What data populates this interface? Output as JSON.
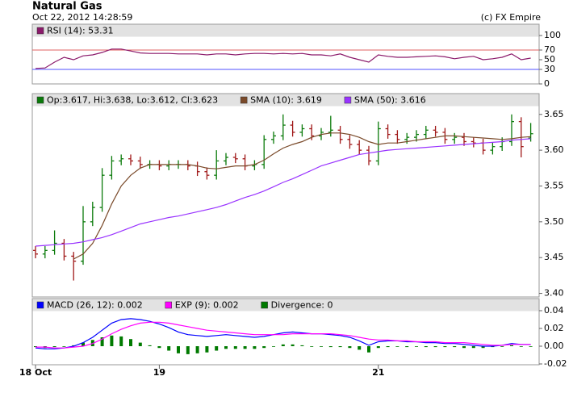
{
  "header": {
    "title": "Natural Gas",
    "timestamp": "Oct 22, 2012 14:28:59",
    "credit": "(c) FX Empire"
  },
  "chart_data": [
    {
      "type": "line",
      "ylim": [
        0,
        100
      ],
      "yticks": [
        0,
        30,
        50,
        70,
        100
      ],
      "reference_lines": [
        {
          "value": 70,
          "color": "#e06060"
        },
        {
          "value": 30,
          "color": "#5050ff"
        }
      ],
      "series": [
        {
          "name": "RSI (14): 53.31",
          "color": "#8b1a6b",
          "values": [
            32,
            33,
            45,
            55,
            50,
            58,
            60,
            65,
            72,
            72,
            68,
            64,
            63,
            63,
            63,
            62,
            62,
            62,
            60,
            62,
            62,
            60,
            62,
            63,
            63,
            62,
            63,
            62,
            63,
            60,
            60,
            58,
            62,
            55,
            50,
            45,
            60,
            57,
            55,
            55,
            56,
            57,
            58,
            56,
            52,
            55,
            57,
            50,
            52,
            55,
            62,
            50,
            53.31
          ]
        }
      ]
    },
    {
      "type": "ohlc",
      "ylim": [
        3.395,
        3.661
      ],
      "yticks": [
        {
          "value": 3.4,
          "label": "3.40"
        },
        3.45,
        {
          "value": 3.5,
          "label": "3.50"
        },
        3.55,
        {
          "value": 3.6,
          "label": "3.60"
        },
        3.65
      ],
      "series": [
        {
          "name": "Op:3.617, Hi:3.638, Lo:3.612, Cl:3.623",
          "color": "#0a7a0a",
          "up_color": "#0a7a0a",
          "down_color": "#a01818",
          "open": [
            3.46,
            3.455,
            3.46,
            3.47,
            3.452,
            3.445,
            3.5,
            3.52,
            3.565,
            3.585,
            3.588,
            3.585,
            3.58,
            3.58,
            3.578,
            3.58,
            3.58,
            3.578,
            3.57,
            3.565,
            3.585,
            3.59,
            3.588,
            3.578,
            3.58,
            3.615,
            3.62,
            3.635,
            3.625,
            3.63,
            3.62,
            3.625,
            3.628,
            3.615,
            3.608,
            3.6,
            3.585,
            3.63,
            3.622,
            3.615,
            3.618,
            3.622,
            3.628,
            3.625,
            3.615,
            3.618,
            3.612,
            3.61,
            3.6,
            3.605,
            3.612,
            3.64,
            3.617
          ],
          "high": [
            3.466,
            3.466,
            3.488,
            3.476,
            3.458,
            3.522,
            3.528,
            3.575,
            3.592,
            3.594,
            3.594,
            3.591,
            3.586,
            3.586,
            3.586,
            3.586,
            3.586,
            3.584,
            3.576,
            3.6,
            3.596,
            3.596,
            3.594,
            3.586,
            3.621,
            3.626,
            3.65,
            3.641,
            3.636,
            3.636,
            3.631,
            3.648,
            3.634,
            3.621,
            3.614,
            3.606,
            3.64,
            3.636,
            3.628,
            3.624,
            3.628,
            3.634,
            3.634,
            3.631,
            3.624,
            3.624,
            3.618,
            3.616,
            3.611,
            3.618,
            3.65,
            3.646,
            3.638
          ],
          "low": [
            3.449,
            3.449,
            3.454,
            3.446,
            3.418,
            3.44,
            3.494,
            3.514,
            3.559,
            3.579,
            3.579,
            3.574,
            3.574,
            3.572,
            3.572,
            3.574,
            3.572,
            3.564,
            3.559,
            3.559,
            3.579,
            3.582,
            3.572,
            3.572,
            3.574,
            3.609,
            3.614,
            3.619,
            3.619,
            3.614,
            3.614,
            3.619,
            3.609,
            3.602,
            3.594,
            3.579,
            3.579,
            3.616,
            3.609,
            3.609,
            3.612,
            3.616,
            3.619,
            3.609,
            3.609,
            3.606,
            3.604,
            3.594,
            3.594,
            3.599,
            3.606,
            3.59,
            3.612
          ],
          "close": [
            3.455,
            3.46,
            3.47,
            3.452,
            3.445,
            3.5,
            3.52,
            3.565,
            3.585,
            3.588,
            3.585,
            3.58,
            3.58,
            3.578,
            3.58,
            3.58,
            3.578,
            3.57,
            3.565,
            3.585,
            3.59,
            3.588,
            3.578,
            3.58,
            3.615,
            3.62,
            3.635,
            3.625,
            3.63,
            3.62,
            3.625,
            3.628,
            3.615,
            3.608,
            3.6,
            3.585,
            3.63,
            3.622,
            3.615,
            3.618,
            3.622,
            3.628,
            3.625,
            3.615,
            3.618,
            3.612,
            3.61,
            3.6,
            3.605,
            3.612,
            3.64,
            3.605,
            3.623
          ]
        },
        {
          "name": "SMA (10): 3.619",
          "color": "#7a4a2a",
          "values": [
            null,
            null,
            null,
            null,
            3.448,
            3.455,
            3.47,
            3.495,
            3.525,
            3.55,
            3.565,
            3.575,
            3.58,
            3.58,
            3.58,
            3.58,
            3.58,
            3.578,
            3.575,
            3.574,
            3.576,
            3.578,
            3.578,
            3.58,
            3.586,
            3.595,
            3.603,
            3.608,
            3.612,
            3.618,
            3.622,
            3.624,
            3.624,
            3.622,
            3.618,
            3.612,
            3.608,
            3.61,
            3.61,
            3.612,
            3.614,
            3.616,
            3.618,
            3.62,
            3.62,
            3.619,
            3.618,
            3.617,
            3.616,
            3.615,
            3.616,
            3.618,
            3.619
          ]
        },
        {
          "name": "SMA (50): 3.616",
          "color": "#9933ff",
          "values": [
            3.466,
            3.467,
            3.468,
            3.469,
            3.47,
            3.472,
            3.475,
            3.478,
            3.482,
            3.487,
            3.492,
            3.497,
            3.5,
            3.503,
            3.506,
            3.508,
            3.511,
            3.514,
            3.517,
            3.52,
            3.524,
            3.529,
            3.534,
            3.538,
            3.543,
            3.549,
            3.555,
            3.56,
            3.566,
            3.572,
            3.578,
            3.582,
            3.586,
            3.59,
            3.594,
            3.596,
            3.598,
            3.6,
            3.601,
            3.602,
            3.603,
            3.604,
            3.605,
            3.606,
            3.607,
            3.608,
            3.609,
            3.61,
            3.611,
            3.612,
            3.614,
            3.615,
            3.616
          ]
        }
      ]
    },
    {
      "type": "macd",
      "ylim": [
        -0.02,
        0.04
      ],
      "yticks": [
        {
          "value": -0.02,
          "label": "-0.02"
        },
        {
          "value": 0,
          "label": "0.00"
        },
        {
          "value": 0.02,
          "label": "0.02"
        },
        {
          "value": 0.04,
          "label": "0.04"
        }
      ],
      "categories": [
        "18 Oct",
        null,
        null,
        null,
        null,
        null,
        null,
        null,
        null,
        null,
        null,
        null,
        null,
        "19",
        null,
        null,
        null,
        null,
        null,
        null,
        null,
        null,
        null,
        null,
        null,
        null,
        null,
        null,
        null,
        null,
        null,
        null,
        null,
        null,
        null,
        null,
        "21",
        null,
        null,
        null,
        null,
        null,
        null,
        null,
        null,
        null,
        null,
        null,
        null,
        null,
        null,
        null,
        null
      ],
      "series": [
        {
          "name": "MACD (26, 12): 0.002",
          "color": "#0000ff",
          "values": [
            -0.002,
            -0.003,
            -0.003,
            -0.002,
            0.0,
            0.004,
            0.01,
            0.018,
            0.026,
            0.03,
            0.031,
            0.03,
            0.028,
            0.025,
            0.021,
            0.016,
            0.013,
            0.012,
            0.011,
            0.012,
            0.013,
            0.012,
            0.011,
            0.01,
            0.011,
            0.013,
            0.015,
            0.016,
            0.015,
            0.014,
            0.014,
            0.013,
            0.012,
            0.01,
            0.006,
            0.001,
            0.005,
            0.006,
            0.006,
            0.005,
            0.005,
            0.004,
            0.004,
            0.003,
            0.003,
            0.002,
            0.001,
            0.0,
            0.0,
            0.001,
            0.003,
            0.002,
            0.002
          ]
        },
        {
          "name": "EXP (9): 0.002",
          "color": "#ff00ff",
          "values": [
            -0.001,
            -0.001,
            -0.002,
            -0.002,
            -0.001,
            0.0,
            0.003,
            0.008,
            0.014,
            0.019,
            0.023,
            0.026,
            0.027,
            0.027,
            0.026,
            0.024,
            0.022,
            0.02,
            0.018,
            0.017,
            0.016,
            0.015,
            0.014,
            0.013,
            0.013,
            0.013,
            0.013,
            0.014,
            0.014,
            0.014,
            0.014,
            0.014,
            0.013,
            0.012,
            0.01,
            0.008,
            0.007,
            0.007,
            0.006,
            0.006,
            0.005,
            0.005,
            0.005,
            0.004,
            0.004,
            0.004,
            0.003,
            0.002,
            0.001,
            0.001,
            0.002,
            0.002,
            0.002
          ]
        },
        {
          "name": "Divergence: 0",
          "color": "#007a00",
          "style": "bar",
          "values": [
            -0.001,
            -0.002,
            -0.001,
            0.0,
            0.001,
            0.004,
            0.007,
            0.01,
            0.012,
            0.011,
            0.008,
            0.004,
            0.001,
            -0.002,
            -0.005,
            -0.008,
            -0.009,
            -0.008,
            -0.007,
            -0.005,
            -0.003,
            -0.003,
            -0.003,
            -0.003,
            -0.002,
            0.0,
            0.002,
            0.002,
            0.001,
            0.0,
            0.0,
            -0.001,
            -0.001,
            -0.002,
            -0.004,
            -0.007,
            -0.002,
            -0.001,
            0.0,
            -0.001,
            0.0,
            -0.001,
            -0.001,
            -0.001,
            -0.001,
            -0.002,
            -0.002,
            -0.002,
            -0.001,
            0.0,
            0.001,
            0.0,
            0.0
          ]
        }
      ]
    }
  ]
}
